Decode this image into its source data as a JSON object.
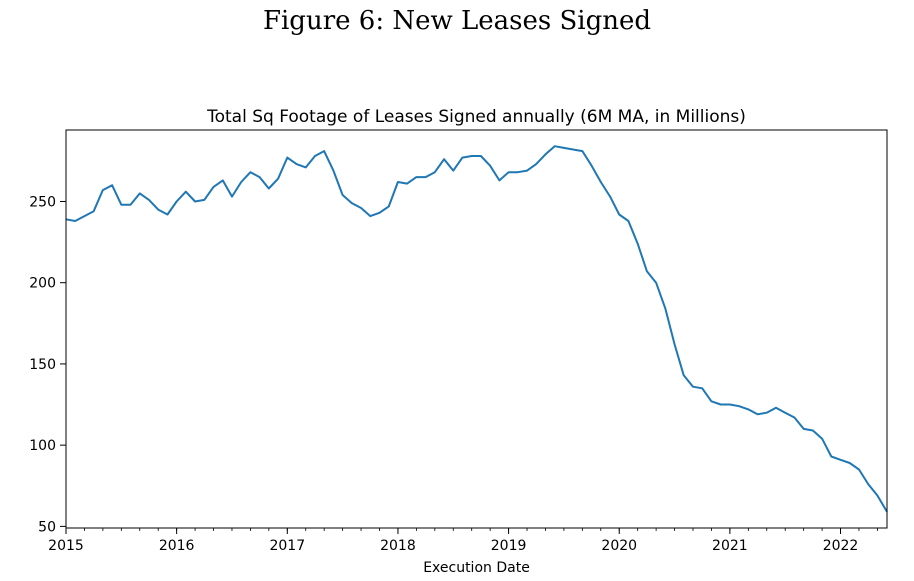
{
  "figure": {
    "title": "Figure 6: New Leases Signed"
  },
  "chart_data": {
    "type": "line",
    "title": "Total Sq Footage of Leases Signed annually (6M MA, in Millions)",
    "xlabel": "Execution Date",
    "ylabel": "",
    "xlim": [
      2015.0,
      2022.42
    ],
    "ylim": [
      49,
      294
    ],
    "xticks": [
      2015,
      2016,
      2017,
      2018,
      2019,
      2020,
      2021,
      2022
    ],
    "yticks": [
      50,
      100,
      150,
      200,
      250
    ],
    "grid": false,
    "line_color": "#1f77b4",
    "series": [
      {
        "x": [
          2015.0,
          2015.083,
          2015.25,
          2015.333,
          2015.417,
          2015.5,
          2015.583,
          2015.667,
          2015.75,
          2015.833,
          2015.917,
          2016.0,
          2016.083,
          2016.167,
          2016.25,
          2016.333,
          2016.417,
          2016.5,
          2016.583,
          2016.667,
          2016.75,
          2016.833,
          2016.917,
          2017.0,
          2017.083,
          2017.167,
          2017.25,
          2017.333,
          2017.417,
          2017.5,
          2017.583,
          2017.667,
          2017.75,
          2017.833,
          2017.917,
          2018.0,
          2018.083,
          2018.167,
          2018.25,
          2018.333,
          2018.417,
          2018.5,
          2018.583,
          2018.667,
          2018.75,
          2018.833,
          2018.917,
          2019.0,
          2019.083,
          2019.167,
          2019.25,
          2019.333,
          2019.417,
          2019.5,
          2019.583,
          2019.667,
          2019.75,
          2019.833,
          2019.917,
          2020.0,
          2020.083,
          2020.167,
          2020.25,
          2020.333,
          2020.417,
          2020.5,
          2020.583,
          2020.667,
          2020.75,
          2020.833,
          2020.917,
          2021.0,
          2021.083,
          2021.167,
          2021.25,
          2021.333,
          2021.417,
          2021.5,
          2021.583,
          2021.667,
          2021.75,
          2021.833,
          2021.917,
          2022.0,
          2022.083,
          2022.167,
          2022.25,
          2022.333,
          2022.42
        ],
        "y": [
          239,
          238,
          244,
          257,
          260,
          248,
          248,
          255,
          251,
          245,
          242,
          250,
          256,
          250,
          251,
          259,
          263,
          253,
          262,
          268,
          265,
          258,
          264,
          277,
          273,
          271,
          278,
          281,
          269,
          254,
          249,
          246,
          241,
          243,
          247,
          262,
          261,
          265,
          265,
          268,
          276,
          269,
          277,
          278,
          278,
          272,
          263,
          268,
          268,
          269,
          273,
          279,
          284,
          283,
          282,
          281,
          272,
          262,
          253,
          242,
          238,
          224,
          207,
          200,
          184,
          162,
          143,
          136,
          135,
          127,
          125,
          125,
          124,
          122,
          119,
          120,
          123,
          120,
          117,
          110,
          109,
          104,
          93,
          91,
          89,
          85,
          76,
          69,
          59
        ]
      }
    ]
  }
}
